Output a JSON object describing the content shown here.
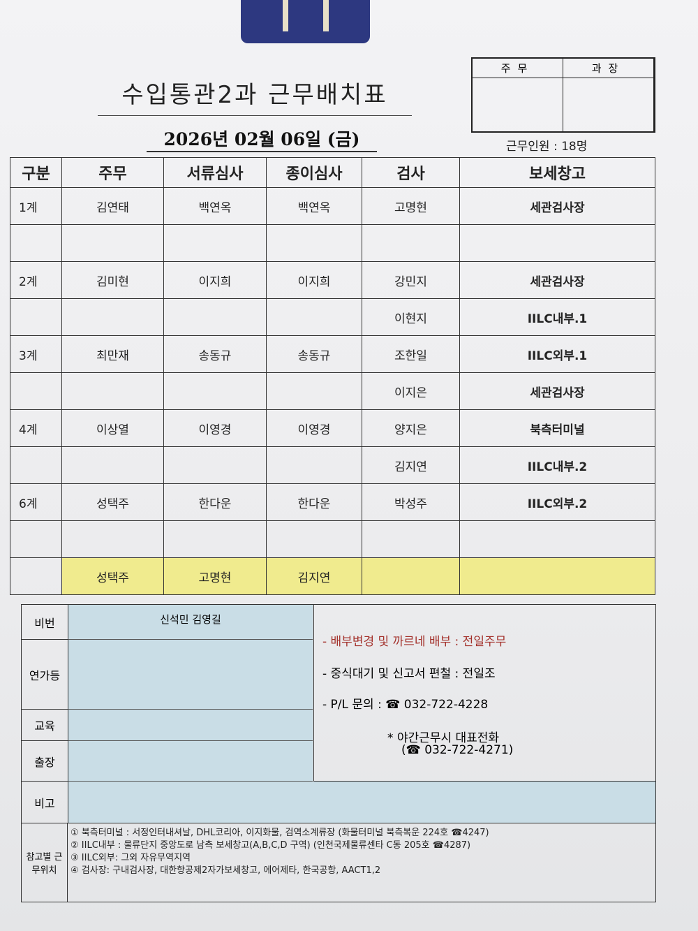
{
  "title": "수입통관2과 근무배치표",
  "date": "2026년 02월 06일 (금)",
  "staff_count": "근무인원 : 18명",
  "approval": {
    "col1": "주무",
    "col2": "과장"
  },
  "table": {
    "headers": [
      "구분",
      "주무",
      "서류심사",
      "종이심사",
      "검사",
      "보세창고"
    ],
    "rows": [
      [
        "1계",
        "김연태",
        "백연옥",
        "백연옥",
        "고명현",
        "세관검사장"
      ],
      [
        "",
        "",
        "",
        "",
        "",
        ""
      ],
      [
        "2계",
        "김미현",
        "이지희",
        "이지희",
        "강민지",
        "세관검사장"
      ],
      [
        "",
        "",
        "",
        "",
        "이현지",
        "IILC내부.1"
      ],
      [
        "3계",
        "최만재",
        "송동규",
        "송동규",
        "조한일",
        "IILC외부.1"
      ],
      [
        "",
        "",
        "",
        "",
        "이지은",
        "세관검사장"
      ],
      [
        "4계",
        "이상열",
        "이영경",
        "이영경",
        "양지은",
        "북측터미널"
      ],
      [
        "",
        "",
        "",
        "",
        "김지연",
        "IILC내부.2"
      ],
      [
        "6계",
        "성택주",
        "한다운",
        "한다운",
        "박성주",
        "IILC외부.2"
      ],
      [
        "",
        "",
        "",
        "",
        "",
        ""
      ]
    ],
    "highlight_row": [
      "",
      "성택주",
      "고명현",
      "김지연",
      "",
      ""
    ],
    "highlight_color": "#f0eb8e"
  },
  "lower": {
    "labels": [
      "비번",
      "연가등",
      "교육",
      "출장",
      "비고",
      "참고별 근무위치"
    ],
    "off_duty": "신석민 김영길",
    "notes": [
      "- 배부변경 및 까르네 배부 : 전일주무",
      "- 중식대기 및 신고서 편철 : 전일조",
      "- P/L 문의 : ☎ 032-722-4228",
      "* 야간근무시 대표전화",
      "(☎ 032-722-4271)"
    ],
    "note_red_color": "#a3302a",
    "references": [
      "① 북측터미널 : 서정인터내셔날, DHL코리아, 이지화물, 검역소계류장 (화물터미널 북측복운 224호 ☎4247)",
      "② IILC내부 : 물류단지 중앙도로 남측 보세창고(A,B,C,D 구역) (인천국제물류센타 C동 205호 ☎4287)",
      "③ IILC외부:  그외 자유무역지역",
      "④ 검사장: 구내검사장, 대한항공제2자가보세창고, 에어제타, 한국공항, AACT1,2"
    ]
  }
}
